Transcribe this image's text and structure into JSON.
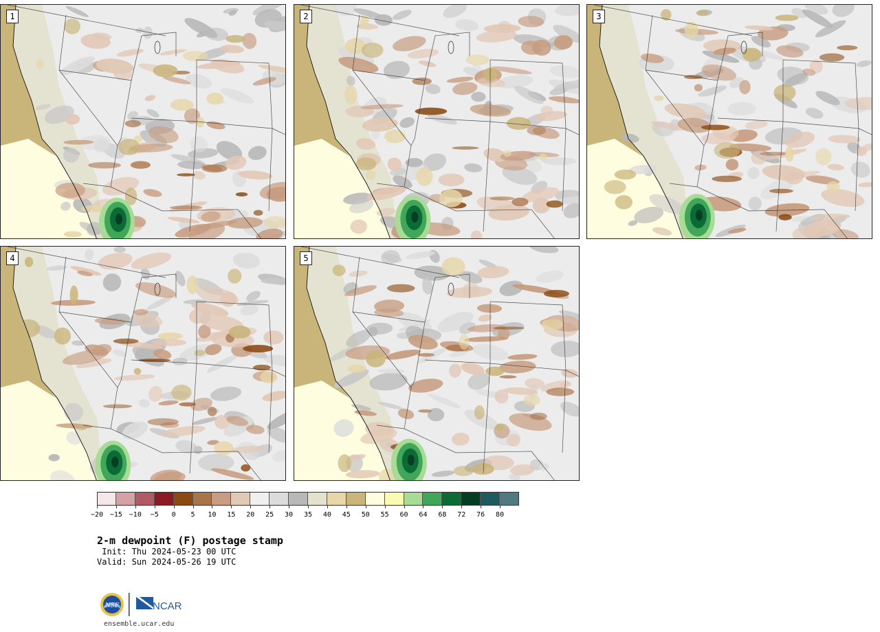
{
  "panels": [
    {
      "label": "1"
    },
    {
      "label": "2"
    },
    {
      "label": "3"
    },
    {
      "label": "4"
    },
    {
      "label": "5"
    }
  ],
  "colorbar": {
    "colors": [
      "#f5e6e8",
      "#d4a1a6",
      "#b05a63",
      "#8b1a24",
      "#8a4a12",
      "#a8744a",
      "#c79c80",
      "#e2c8b6",
      "#f0f0f0",
      "#dcdcdc",
      "#b8b8b8",
      "#e4e1cf",
      "#e6d6a8",
      "#c9b47a",
      "#fffde0",
      "#fafab2",
      "#a8dc96",
      "#3fa65a",
      "#0b6b35",
      "#073d22",
      "#1e5a5e",
      "#507a80"
    ],
    "tick_labels": [
      "−20",
      "−15",
      "−10",
      "−5",
      "0",
      "5",
      "10",
      "15",
      "20",
      "25",
      "30",
      "35",
      "40",
      "45",
      "50",
      "55",
      "60",
      "64",
      "68",
      "72",
      "76",
      "80"
    ]
  },
  "title": "2-m dewpoint (F) postage stamp",
  "init_line": " Init: Thu 2024-05-23 00 UTC",
  "valid_line": "Valid: Sun 2024-05-26 19 UTC",
  "logos": {
    "nsf": "NSF",
    "ncar": "NCAR"
  },
  "website": "ensemble.ucar.edu"
}
